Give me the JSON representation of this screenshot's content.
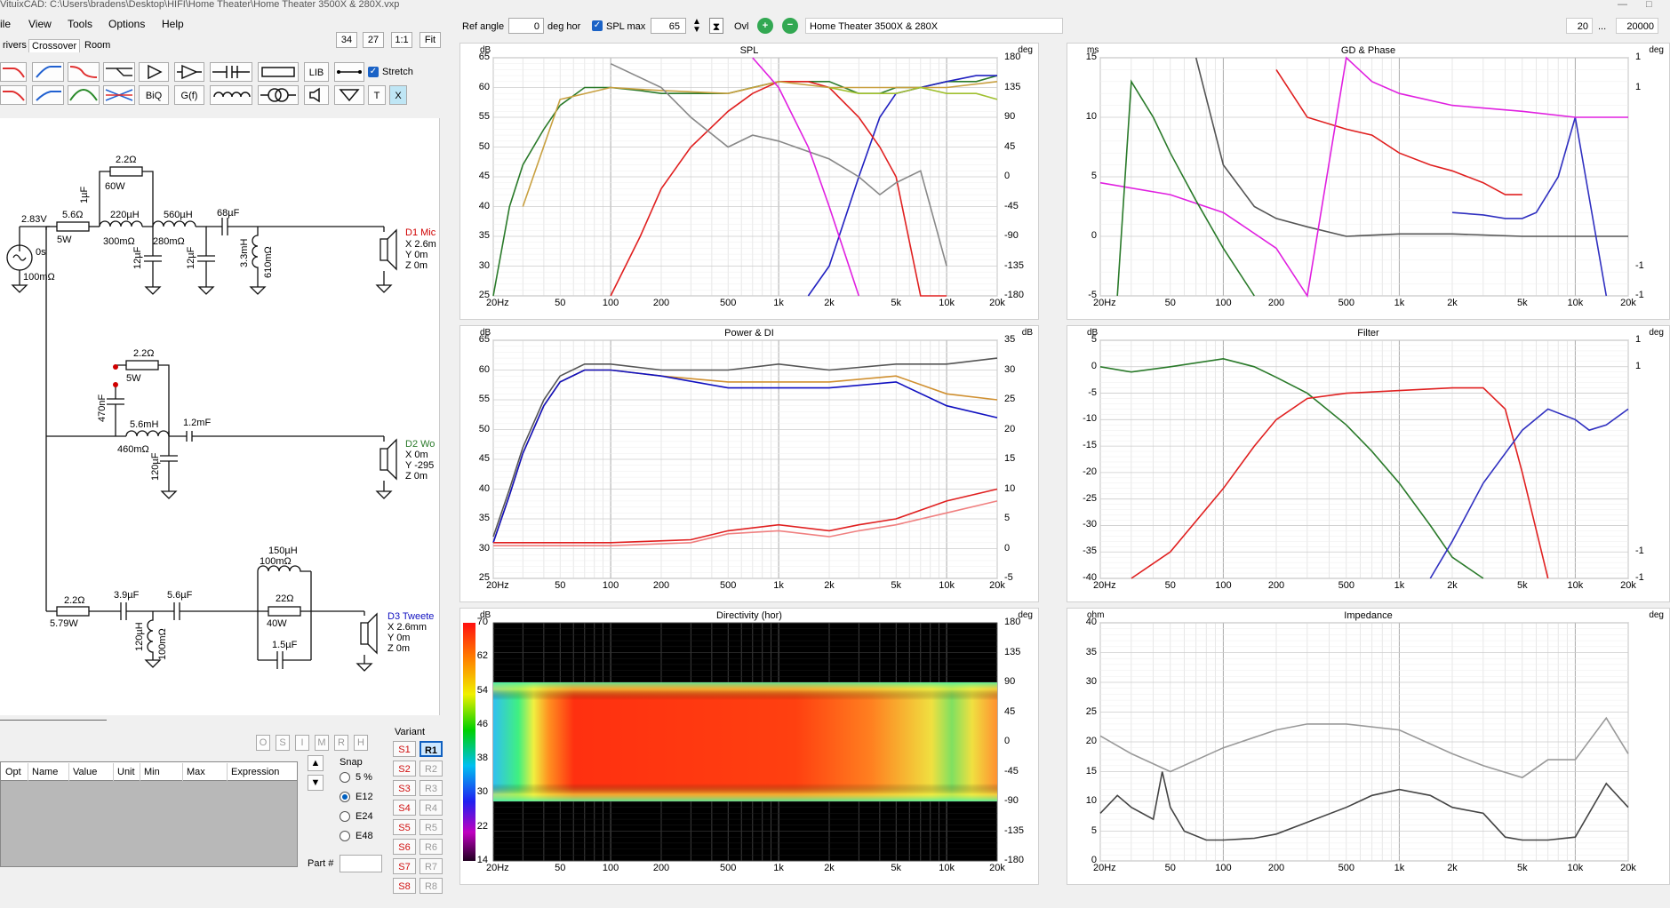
{
  "window": {
    "title": "VituixCAD: C:\\Users\\bradens\\Desktop\\HIFI\\Home Theater\\Home Theater 3500X & 280X.vxp"
  },
  "menu": [
    "ile",
    "View",
    "Tools",
    "Options",
    "Help"
  ],
  "tabs": [
    "rivers",
    "Crossover",
    "Room"
  ],
  "zoom_buttons": [
    "34",
    "27",
    "1:1",
    "Fit"
  ],
  "toolbar": {
    "lib_label": "LIB",
    "biq_label": "BiQ",
    "gf_label": "G(f)",
    "t_label": "T",
    "x_label": "X",
    "stretch_label": "Stretch",
    "stretch_checked": true
  },
  "topbar": {
    "ref_angle_label": "Ref angle",
    "ref_angle_value": "0",
    "deg_hor_label": "deg hor",
    "spl_max_label": "SPL max",
    "spl_max_checked": true,
    "spl_max_value": "65",
    "ovl_label": "Ovl",
    "project_name": "Home Theater 3500X & 280X",
    "freq_min": "20",
    "freq_sep": "...",
    "freq_max": "20000"
  },
  "schematic": {
    "labels": {
      "src_v": "2.83V",
      "src_ph": "0s",
      "src_r": "100mΩ",
      "r1": "5.6Ω",
      "r1w": "5W",
      "r2": "2.2Ω",
      "r2w": "60W",
      "c1": "1µF",
      "l1": "220µH",
      "l1r": "300mΩ",
      "c2": "12µF",
      "l2": "560µH",
      "l2r": "280mΩ",
      "c3": "12µF",
      "c4": "68µF",
      "l3": "3.3mH",
      "l3r": "610mΩ",
      "d1_name": "D1 Mic",
      "d1_x": "X 2.6m",
      "d1_y": "Y 0m",
      "d1_z": "Z 0m",
      "r3": "2.2Ω",
      "r3w": "5W",
      "c5": "470nF",
      "l4": "5.6mH",
      "l4r": "460mΩ",
      "c6": "120µF",
      "c7": "1.2mF",
      "d2_name": "D2 Wo",
      "d2_x": "X 0m",
      "d2_y": "Y -295",
      "d2_z": "Z 0m",
      "l5": "150µH",
      "l5r": "100mΩ",
      "r4": "2.2Ω",
      "r4w": "5.79W",
      "c8": "3.9µF",
      "c9": "5.6µF",
      "l6": "120µH",
      "l6r": "100mΩ",
      "r5": "22Ω",
      "r5w": "40W",
      "c10": "1.5µF",
      "d3_name": "D3 Tweete",
      "d3_x": "X 2.6mm",
      "d3_y": "Y 0m",
      "d3_z": "Z 0m"
    }
  },
  "params_table": {
    "mini_buttons": [
      "O",
      "S",
      "I",
      "M",
      "R",
      "H"
    ],
    "headers": [
      "Opt",
      "Name",
      "Value",
      "Unit",
      "Min",
      "Max",
      "Expression"
    ]
  },
  "snap": {
    "label": "Snap",
    "options": [
      "5 %",
      "E12",
      "E24",
      "E48"
    ],
    "selected": "E12"
  },
  "variant": {
    "label": "Variant",
    "s": [
      "S1",
      "S2",
      "S3",
      "S4",
      "S5",
      "S6",
      "S7",
      "S8"
    ],
    "r": [
      "R1",
      "R2",
      "R3",
      "R4",
      "R5",
      "R6",
      "R7",
      "R8"
    ],
    "active_r": "R1"
  },
  "part_label": "Part #",
  "x_ticks": [
    "20Hz",
    "50",
    "100",
    "200",
    "500",
    "1k",
    "2k",
    "5k",
    "10k",
    "20k"
  ],
  "charts": {
    "spl": {
      "title": "SPL",
      "unit_left": "dB",
      "unit_right": "deg",
      "y_left": [
        "65",
        "60",
        "55",
        "50",
        "45",
        "40",
        "35",
        "30",
        "25"
      ],
      "y_right": [
        "180",
        "135",
        "90",
        "45",
        "0",
        "-45",
        "-90",
        "-135",
        "-180"
      ]
    },
    "gd": {
      "title": "GD & Phase",
      "unit_left": "ms",
      "unit_right": "deg",
      "y_left": [
        "15",
        "10",
        "5",
        "0",
        "-5"
      ],
      "y_right": [
        "1",
        "1",
        "",
        "",
        "",
        "",
        "",
        "-1",
        "-1"
      ]
    },
    "power": {
      "title": "Power & DI",
      "unit_left": "dB",
      "unit_right": "dB",
      "y_left": [
        "65",
        "60",
        "55",
        "50",
        "45",
        "40",
        "35",
        "30",
        "25"
      ],
      "y_right": [
        "35",
        "30",
        "25",
        "20",
        "15",
        "10",
        "5",
        "0",
        "-5"
      ]
    },
    "filter": {
      "title": "Filter",
      "unit_left": "dB",
      "unit_right": "deg",
      "y_left": [
        "5",
        "0",
        "-5",
        "-10",
        "-15",
        "-20",
        "-25",
        "-30",
        "-35",
        "-40"
      ],
      "y_right": [
        "1",
        "1",
        "",
        "",
        "",
        "",
        "",
        "",
        "-1",
        "-1"
      ]
    },
    "directivity": {
      "title": "Directivity (hor)",
      "unit_left": "dB",
      "unit_right": "deg",
      "scale": [
        "70",
        "62",
        "54",
        "46",
        "38",
        "30",
        "22",
        "14"
      ],
      "y_right": [
        "180",
        "135",
        "90",
        "45",
        "0",
        "-45",
        "-90",
        "-135",
        "-180"
      ]
    },
    "impedance": {
      "title": "Impedance",
      "unit_left": "ohm",
      "unit_right": "deg",
      "y_left": [
        "40",
        "35",
        "30",
        "25",
        "20",
        "15",
        "10",
        "5",
        "0"
      ],
      "y_right": [
        "",
        "",
        "",
        "",
        "",
        "",
        "",
        "",
        ""
      ]
    }
  },
  "chart_data": [
    {
      "type": "line",
      "title": "SPL",
      "x_scale": "log",
      "xlim": [
        20,
        20000
      ],
      "ylim": [
        25,
        65
      ],
      "series": [
        {
          "color": "#2a7a2a",
          "x": [
            20,
            25,
            30,
            40,
            50,
            70,
            100,
            150,
            200,
            300,
            500,
            700,
            1000,
            2000,
            3000,
            4000,
            5000,
            7000,
            10000,
            15000,
            20000
          ],
          "y": [
            25,
            40,
            47,
            53,
            57,
            60,
            60,
            59.5,
            59,
            59,
            59,
            60,
            61,
            61,
            59,
            59,
            60,
            60,
            61,
            61,
            62
          ]
        },
        {
          "color": "#2020c0",
          "x": [
            1500,
            2000,
            3000,
            4000,
            5000,
            7000,
            10000,
            15000,
            20000
          ],
          "y": [
            22,
            30,
            45,
            55,
            59,
            60,
            61,
            62,
            62
          ]
        },
        {
          "color": "#e02020",
          "x": [
            100,
            150,
            200,
            300,
            500,
            700,
            1000,
            1500,
            2000,
            3000,
            4000,
            5000,
            7000,
            10000
          ],
          "y": [
            25,
            35,
            43,
            50,
            56,
            59,
            61,
            61,
            60,
            55,
            50,
            45,
            25,
            10
          ]
        },
        {
          "color": "#c8a040",
          "x": [
            30,
            50,
            100,
            200,
            500,
            1000,
            2000,
            5000,
            10000,
            20000
          ],
          "y": [
            40,
            58,
            60,
            59.5,
            59,
            61,
            60,
            60,
            60,
            61
          ]
        },
        {
          "color": "#a0c030",
          "x": [
            2000,
            3000,
            5000,
            7000,
            10000,
            15000,
            20000
          ],
          "y": [
            60,
            59,
            59,
            60,
            59,
            59,
            58
          ]
        },
        {
          "color": "#888888",
          "x": [
            100,
            200,
            300,
            500,
            700,
            1000,
            2000,
            3000,
            4000,
            5000,
            7000,
            10000
          ],
          "y": [
            64,
            60,
            55,
            50,
            52,
            51,
            48,
            45,
            42,
            44,
            46,
            30
          ]
        },
        {
          "color": "#e020e0",
          "x": [
            700,
            1000,
            1500,
            2000,
            3000
          ],
          "y": [
            65,
            60,
            50,
            40,
            25
          ]
        }
      ]
    },
    {
      "type": "line",
      "title": "GD & Phase",
      "x_scale": "log",
      "xlim": [
        20,
        20000
      ],
      "ylim": [
        -5,
        15
      ],
      "series": [
        {
          "color": "#555555",
          "x": [
            70,
            100,
            150,
            200,
            300,
            500,
            1000,
            2000,
            5000,
            10000,
            20000
          ],
          "y": [
            15,
            6,
            2.5,
            1.5,
            0.8,
            0,
            0.2,
            0.2,
            0,
            0,
            0
          ]
        },
        {
          "color": "#e02020",
          "x": [
            200,
            300,
            500,
            700,
            1000,
            1500,
            2000,
            3000,
            4000,
            5000
          ],
          "y": [
            14,
            10,
            9,
            8.5,
            7,
            6,
            5.5,
            4.5,
            3.5,
            3.5
          ]
        },
        {
          "color": "#3030c0",
          "x": [
            2000,
            3000,
            4000,
            5000,
            6000,
            8000,
            10000,
            15000
          ],
          "y": [
            2,
            1.8,
            1.5,
            1.5,
            2,
            5,
            10,
            -5
          ]
        },
        {
          "color": "#e020e0",
          "x": [
            20,
            50,
            100,
            200,
            300,
            500,
            700,
            1000,
            2000,
            5000,
            10000,
            20000
          ],
          "y": [
            4.5,
            3.5,
            2,
            -1,
            -5,
            15,
            13,
            12,
            11,
            10.5,
            10,
            10
          ]
        },
        {
          "color": "#2a7a2a",
          "x": [
            25,
            30,
            40,
            50,
            70,
            100,
            150
          ],
          "y": [
            -5,
            13,
            10,
            7,
            3,
            -1,
            -5
          ]
        }
      ]
    },
    {
      "type": "line",
      "title": "Power & DI",
      "x_scale": "log",
      "xlim": [
        20,
        20000
      ],
      "ylim": [
        25,
        65
      ],
      "series": [
        {
          "color": "#555555",
          "x": [
            20,
            25,
            30,
            40,
            50,
            70,
            100,
            200,
            500,
            1000,
            2000,
            5000,
            10000,
            20000
          ],
          "y": [
            32,
            40,
            47,
            55,
            59,
            61,
            61,
            60,
            60,
            61,
            60,
            61,
            61,
            62
          ]
        },
        {
          "color": "#d09030",
          "x": [
            20,
            25,
            30,
            40,
            50,
            70,
            100,
            200,
            500,
            1000,
            2000,
            5000,
            10000,
            20000
          ],
          "y": [
            31,
            39,
            46,
            54,
            58,
            60,
            60,
            59,
            58,
            58,
            58,
            59,
            56,
            55
          ]
        },
        {
          "color": "#1010c0",
          "x": [
            20,
            25,
            30,
            40,
            50,
            70,
            100,
            200,
            500,
            1000,
            2000,
            5000,
            10000,
            20000
          ],
          "y": [
            31,
            39,
            46,
            54,
            58,
            60,
            60,
            59,
            57,
            57,
            57,
            58,
            54,
            52
          ]
        },
        {
          "color": "#e02020",
          "x": [
            20,
            100,
            300,
            500,
            1000,
            2000,
            3000,
            5000,
            10000,
            20000
          ],
          "y": [
            31,
            31,
            31.5,
            33,
            34,
            33,
            34,
            35,
            38,
            40
          ]
        },
        {
          "color": "#f08080",
          "x": [
            20,
            100,
            300,
            500,
            1000,
            2000,
            3000,
            5000,
            10000,
            20000
          ],
          "y": [
            30.5,
            30.5,
            31,
            32.5,
            33,
            32,
            33,
            34,
            36,
            38
          ]
        }
      ]
    },
    {
      "type": "line",
      "title": "Filter",
      "x_scale": "log",
      "xlim": [
        20,
        20000
      ],
      "ylim": [
        -40,
        5
      ],
      "series": [
        {
          "color": "#2a7a2a",
          "x": [
            20,
            30,
            50,
            100,
            150,
            200,
            300,
            500,
            700,
            1000,
            1500,
            2000,
            3000
          ],
          "y": [
            0,
            -1,
            0,
            1.5,
            0,
            -2,
            -5,
            -11,
            -16,
            -22,
            -30,
            -36,
            -42
          ]
        },
        {
          "color": "#e02020",
          "x": [
            30,
            50,
            100,
            150,
            200,
            300,
            500,
            1000,
            2000,
            3000,
            4000,
            5000,
            7000
          ],
          "y": [
            -42,
            -35,
            -23,
            -15,
            -10,
            -6,
            -5,
            -4.5,
            -4,
            -4,
            -8,
            -20,
            -42
          ]
        },
        {
          "color": "#3030c0",
          "x": [
            1500,
            2000,
            3000,
            5000,
            7000,
            10000,
            12000,
            15000,
            20000
          ],
          "y": [
            -42,
            -33,
            -22,
            -12,
            -8,
            -10,
            -12,
            -11,
            -8
          ]
        }
      ]
    },
    {
      "type": "heatmap",
      "title": "Directivity (hor)",
      "x_scale": "log",
      "xlim": [
        20,
        20000
      ],
      "ylim": [
        -180,
        180
      ],
      "color_range": [
        14,
        70
      ]
    },
    {
      "type": "line",
      "title": "Impedance",
      "x_scale": "log",
      "xlim": [
        20,
        20000
      ],
      "ylim": [
        0,
        40
      ],
      "series": [
        {
          "color": "#444444",
          "x": [
            20,
            25,
            30,
            40,
            45,
            50,
            60,
            80,
            100,
            150,
            200,
            300,
            500,
            700,
            1000,
            1500,
            2000,
            3000,
            4000,
            5000,
            7000,
            10000,
            15000,
            20000
          ],
          "y": [
            8,
            11,
            9,
            7,
            15,
            9,
            5,
            3.5,
            3.5,
            3.8,
            4.5,
            6.5,
            9,
            11,
            12,
            11,
            9,
            8,
            4,
            3.5,
            3.5,
            4,
            13,
            9
          ]
        },
        {
          "color": "#999999",
          "x": [
            20,
            30,
            50,
            100,
            200,
            300,
            500,
            1000,
            2000,
            3000,
            5000,
            7000,
            10000,
            15000,
            20000
          ],
          "y": [
            21,
            18,
            15,
            19,
            22,
            23,
            23,
            22,
            18,
            16,
            14,
            17,
            17,
            24,
            18
          ]
        }
      ]
    }
  ]
}
